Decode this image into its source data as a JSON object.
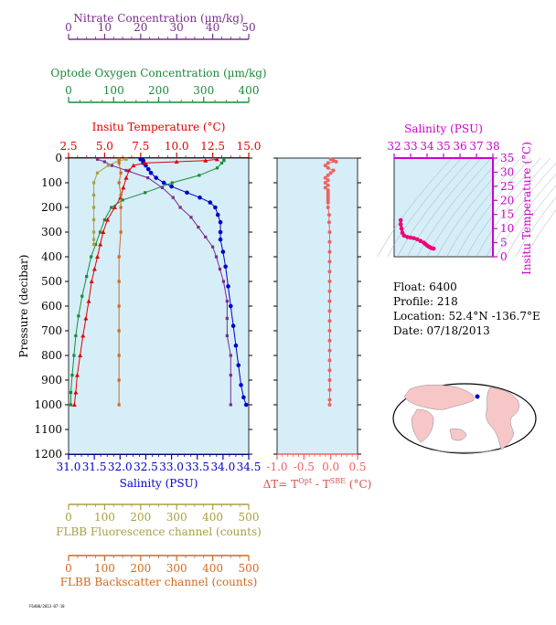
{
  "chart_data": [
    {
      "type": "line",
      "panel": "main-profile",
      "ylabel": "Pressure (decibar)",
      "ylim": [
        1200,
        0
      ],
      "yticks": [
        "0",
        "100",
        "200",
        "300",
        "400",
        "500",
        "600",
        "700",
        "800",
        "900",
        "1000",
        "1100",
        "1200"
      ],
      "axes": [
        {
          "key": "nitrate",
          "label": "Nitrate Concentration (µm/kg)",
          "ticks": [
            "0",
            "10",
            "20",
            "30",
            "40",
            "50"
          ],
          "range": [
            0,
            50
          ],
          "color": "#7a2e8c"
        },
        {
          "key": "oxygen",
          "label": "Optode Oxygen Concentration (µm/kg)",
          "ticks": [
            "0",
            "100",
            "200",
            "300",
            "400"
          ],
          "range": [
            0,
            400
          ],
          "color": "#1a8a3a"
        },
        {
          "key": "temperature",
          "label": "Insitu Temperature (°C)",
          "ticks": [
            "2.5",
            "5.0",
            "7.5",
            "10.0",
            "12.5",
            "15.0"
          ],
          "range": [
            2.5,
            15.0
          ],
          "color": "#e00000"
        },
        {
          "key": "salinity",
          "label": "Salinity (PSU)",
          "ticks": [
            "31.0",
            "31.5",
            "32.0",
            "32.5",
            "33.0",
            "33.5",
            "34.0",
            "34.5"
          ],
          "range": [
            31.0,
            34.5
          ],
          "color": "#0000cc"
        },
        {
          "key": "fluorescence",
          "label": "FLBB Fluorescence channel (counts)",
          "ticks": [
            "0",
            "100",
            "200",
            "300",
            "400",
            "500"
          ],
          "range": [
            0,
            500
          ],
          "color": "#a8a040"
        },
        {
          "key": "backscatter",
          "label": "FLBB Backscatter channel (counts)",
          "ticks": [
            "0",
            "100",
            "200",
            "300",
            "400",
            "500"
          ],
          "range": [
            0,
            500
          ],
          "color": "#d2691e"
        }
      ],
      "series": [
        {
          "key": "salinity",
          "color": "#0000cc",
          "points": [
            [
              32.4,
              5
            ],
            [
              32.45,
              10
            ],
            [
              32.45,
              20
            ],
            [
              32.5,
              30
            ],
            [
              32.55,
              45
            ],
            [
              32.6,
              60
            ],
            [
              32.7,
              80
            ],
            [
              32.85,
              100
            ],
            [
              33.0,
              115
            ],
            [
              33.3,
              140
            ],
            [
              33.55,
              160
            ],
            [
              33.75,
              180
            ],
            [
              33.85,
              200
            ],
            [
              33.9,
              230
            ],
            [
              33.95,
              260
            ],
            [
              33.95,
              300
            ],
            [
              33.95,
              330
            ],
            [
              34.0,
              380
            ],
            [
              34.05,
              440
            ],
            [
              34.1,
              520
            ],
            [
              34.15,
              600
            ],
            [
              34.2,
              680
            ],
            [
              34.25,
              760
            ],
            [
              34.3,
              840
            ],
            [
              34.35,
              920
            ],
            [
              34.4,
              970
            ],
            [
              34.45,
              1000
            ]
          ]
        },
        {
          "key": "temperature",
          "color": "#e00000",
          "points": [
            [
              12.8,
              5
            ],
            [
              12.0,
              10
            ],
            [
              10.0,
              15
            ],
            [
              7.8,
              20
            ],
            [
              7.0,
              30
            ],
            [
              6.7,
              50
            ],
            [
              6.5,
              80
            ],
            [
              6.3,
              120
            ],
            [
              6.1,
              160
            ],
            [
              5.7,
              200
            ],
            [
              5.2,
              250
            ],
            [
              4.9,
              300
            ],
            [
              4.7,
              350
            ],
            [
              4.5,
              400
            ],
            [
              4.3,
              450
            ],
            [
              4.1,
              500
            ],
            [
              3.9,
              580
            ],
            [
              3.7,
              650
            ],
            [
              3.5,
              720
            ],
            [
              3.3,
              800
            ],
            [
              3.1,
              880
            ],
            [
              3.0,
              950
            ],
            [
              2.9,
              1000
            ]
          ]
        },
        {
          "key": "oxygen",
          "color": "#1a8a3a",
          "points": [
            [
              345,
              5
            ],
            [
              345,
              10
            ],
            [
              340,
              20
            ],
            [
              330,
              40
            ],
            [
              290,
              70
            ],
            [
              230,
              100
            ],
            [
              170,
              140
            ],
            [
              120,
              170
            ],
            [
              95,
              200
            ],
            [
              80,
              250
            ],
            [
              70,
              300
            ],
            [
              60,
              350
            ],
            [
              50,
              400
            ],
            [
              40,
              480
            ],
            [
              30,
              560
            ],
            [
              22,
              640
            ],
            [
              16,
              720
            ],
            [
              12,
              800
            ],
            [
              8,
              880
            ],
            [
              5,
              950
            ],
            [
              5,
              1000
            ]
          ]
        },
        {
          "key": "nitrate",
          "color": "#7a2e8c",
          "points": [
            [
              8,
              5
            ],
            [
              10,
              15
            ],
            [
              12,
              30
            ],
            [
              16,
              50
            ],
            [
              22,
              80
            ],
            [
              26,
              120
            ],
            [
              29,
              160
            ],
            [
              31,
              200
            ],
            [
              34,
              240
            ],
            [
              36,
              280
            ],
            [
              38,
              320
            ],
            [
              40,
              360
            ],
            [
              41,
              400
            ],
            [
              42,
              450
            ],
            [
              43,
              500
            ],
            [
              44,
              580
            ],
            [
              44,
              650
            ],
            [
              44,
              720
            ],
            [
              45,
              800
            ],
            [
              45,
              880
            ],
            [
              45,
              1000
            ]
          ]
        },
        {
          "key": "fluorescence",
          "color": "#a8a040",
          "points": [
            [
              160,
              5
            ],
            [
              140,
              10
            ],
            [
              110,
              30
            ],
            [
              80,
              60
            ],
            [
              70,
              100
            ],
            [
              70,
              150
            ],
            [
              70,
              200
            ],
            [
              70,
              250
            ],
            [
              70,
              300
            ],
            [
              70,
              330
            ],
            [
              70,
              350
            ]
          ]
        },
        {
          "key": "backscatter",
          "color": "#d2691e",
          "points": [
            [
              140,
              5
            ],
            [
              140,
              20
            ],
            [
              145,
              60
            ],
            [
              140,
              100
            ],
            [
              145,
              150
            ],
            [
              145,
              200
            ],
            [
              145,
              300
            ],
            [
              140,
              400
            ],
            [
              140,
              500
            ],
            [
              140,
              600
            ],
            [
              140,
              700
            ],
            [
              140,
              800
            ],
            [
              140,
              900
            ],
            [
              140,
              1000
            ]
          ]
        }
      ]
    },
    {
      "type": "scatter",
      "panel": "delta-t",
      "xlabel": "ΔT= T^Opt - T^SBE (°C)",
      "xlabel_main": "ΔT= T",
      "xlabel_sup1": "Opt",
      "xlabel_mid": " - T",
      "xlabel_sup2": "SBE",
      "xlabel_end": " (°C)",
      "xlim": [
        -1.0,
        0.5
      ],
      "xticks": [
        "-1.0",
        "-0.5",
        "0.0",
        "0.5"
      ],
      "ylim": [
        1200,
        0
      ],
      "points": [
        [
          0.0,
          5
        ],
        [
          0.05,
          10
        ],
        [
          0.1,
          15
        ],
        [
          -0.05,
          20
        ],
        [
          -0.1,
          30
        ],
        [
          -0.05,
          40
        ],
        [
          0.05,
          50
        ],
        [
          0.0,
          60
        ],
        [
          -0.05,
          70
        ],
        [
          -0.1,
          80
        ],
        [
          -0.05,
          90
        ],
        [
          -0.1,
          100
        ],
        [
          -0.05,
          110
        ],
        [
          -0.1,
          120
        ],
        [
          -0.05,
          130
        ],
        [
          -0.05,
          140
        ],
        [
          -0.05,
          150
        ],
        [
          -0.05,
          160
        ],
        [
          -0.05,
          170
        ],
        [
          -0.05,
          180
        ],
        [
          -0.05,
          200
        ],
        [
          -0.03,
          230
        ],
        [
          -0.03,
          260
        ],
        [
          -0.02,
          300
        ],
        [
          -0.02,
          340
        ],
        [
          -0.02,
          380
        ],
        [
          -0.02,
          420
        ],
        [
          -0.02,
          460
        ],
        [
          -0.02,
          500
        ],
        [
          -0.02,
          540
        ],
        [
          -0.02,
          580
        ],
        [
          -0.02,
          620
        ],
        [
          -0.02,
          660
        ],
        [
          -0.02,
          700
        ],
        [
          -0.02,
          740
        ],
        [
          -0.02,
          780
        ],
        [
          -0.02,
          820
        ],
        [
          -0.02,
          860
        ],
        [
          -0.02,
          900
        ],
        [
          -0.02,
          940
        ],
        [
          -0.02,
          980
        ],
        [
          -0.02,
          1000
        ]
      ]
    },
    {
      "type": "scatter",
      "panel": "ts-diagram",
      "xlabel": "Salinity (PSU)",
      "ylabel": "Insitu Temperature (°C)",
      "xlim": [
        32,
        38
      ],
      "ylim": [
        0,
        35
      ],
      "xticks": [
        "32",
        "33",
        "34",
        "35",
        "36",
        "37",
        "38"
      ],
      "yticks": [
        "0",
        "5",
        "10",
        "15",
        "20",
        "25",
        "30",
        "35"
      ],
      "points": [
        [
          32.4,
          13
        ],
        [
          32.4,
          11.5
        ],
        [
          32.45,
          10
        ],
        [
          32.5,
          8.5
        ],
        [
          32.6,
          7.5
        ],
        [
          32.8,
          7
        ],
        [
          33.0,
          6.8
        ],
        [
          33.2,
          6.6
        ],
        [
          33.4,
          6.2
        ],
        [
          33.6,
          5.6
        ],
        [
          33.8,
          5.0
        ],
        [
          33.9,
          4.5
        ],
        [
          34.0,
          4.0
        ],
        [
          34.1,
          3.6
        ],
        [
          34.2,
          3.3
        ],
        [
          34.3,
          3.0
        ],
        [
          34.4,
          2.9
        ]
      ]
    }
  ],
  "info": {
    "float": "Float:  6400",
    "profile": "Profile:  218",
    "location": "Location:  52.4°N  -136.7°E",
    "date": "Date:  07/18/2013"
  },
  "footer_text": "F6400/2013-07-18",
  "colors": {
    "plot_bg": "#d6eef8",
    "map_land": "#f7c6c6",
    "map_ocean": "#ffffff"
  }
}
